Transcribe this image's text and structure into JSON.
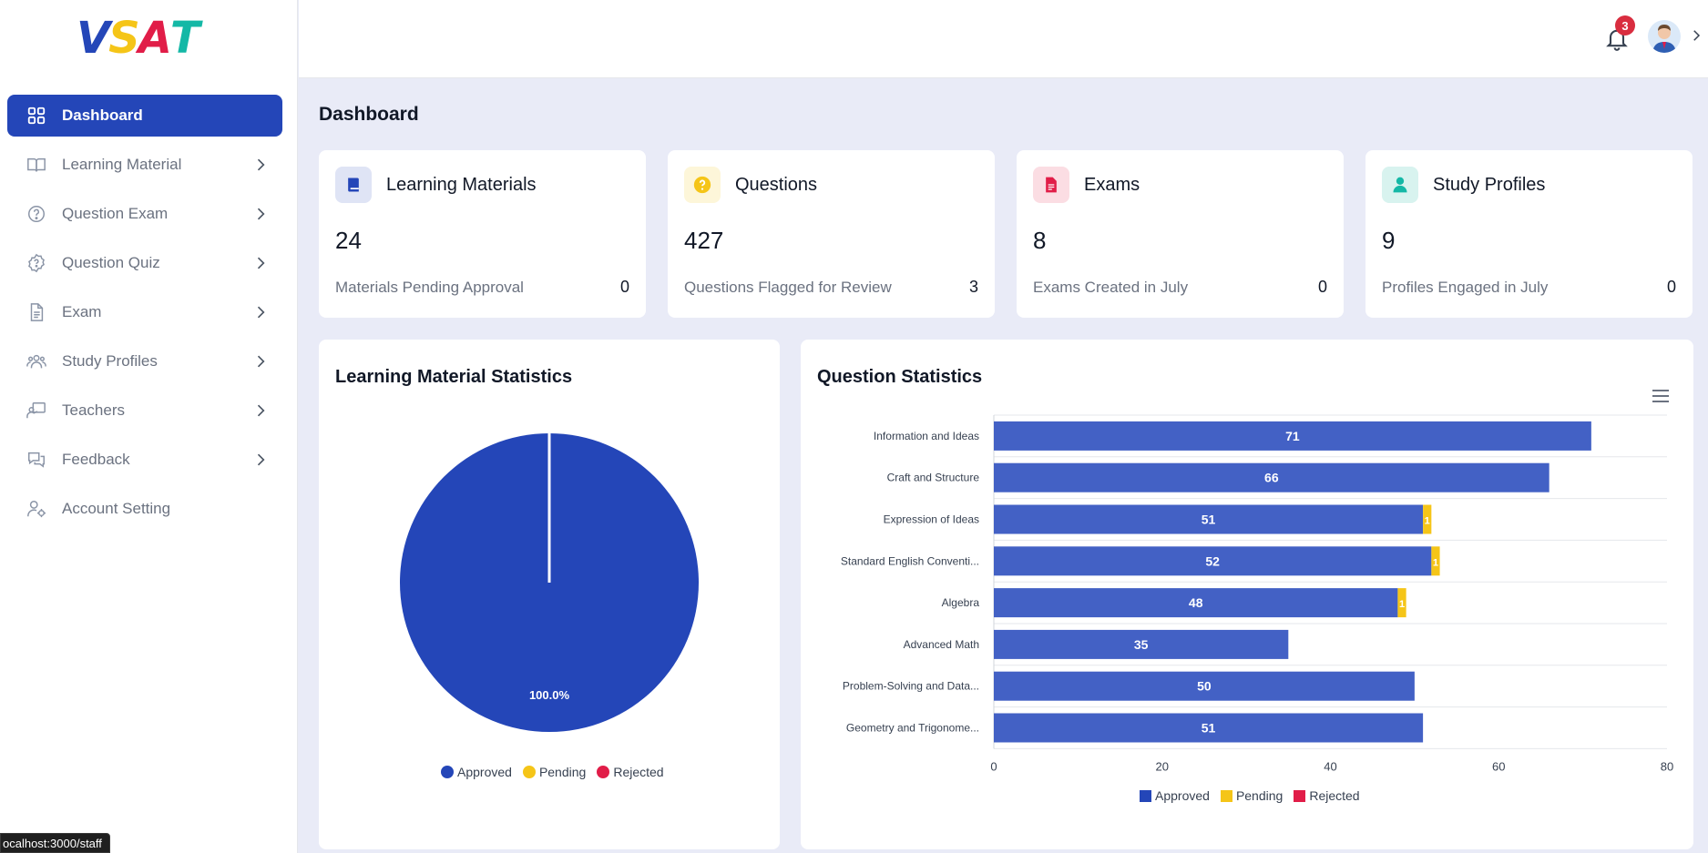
{
  "logo": {
    "letters": [
      "V",
      "S",
      "A",
      "T"
    ],
    "colors": [
      "#2446b8",
      "#f5c518",
      "#e11d48",
      "#14b8a6"
    ]
  },
  "sidebar": {
    "items": [
      {
        "label": "Dashboard",
        "icon": "grid-icon",
        "active": true,
        "has_chevron": false
      },
      {
        "label": "Learning Material",
        "icon": "book-icon",
        "has_chevron": true
      },
      {
        "label": "Question Exam",
        "icon": "question-circle-icon",
        "has_chevron": true
      },
      {
        "label": "Question Quiz",
        "icon": "quiz-badge-icon",
        "has_chevron": true
      },
      {
        "label": "Exam",
        "icon": "document-icon",
        "has_chevron": true
      },
      {
        "label": "Study Profiles",
        "icon": "users-icon",
        "has_chevron": true
      },
      {
        "label": "Teachers",
        "icon": "teacher-icon",
        "has_chevron": true
      },
      {
        "label": "Feedback",
        "icon": "chat-bubbles-icon",
        "has_chevron": true
      },
      {
        "label": "Account Setting",
        "icon": "user-gear-icon",
        "has_chevron": false
      }
    ]
  },
  "header": {
    "notification_count": "3",
    "avatar_icon": "user-avatar-icon"
  },
  "status_url": "ocalhost:3000/staff",
  "page_title": "Dashboard",
  "stats": [
    {
      "title": "Learning Materials",
      "value": "24",
      "sub_label": "Materials Pending Approval",
      "sub_value": "0",
      "icon": "book-solid-icon",
      "color": "#2446b8",
      "bg": "#dfe4f5"
    },
    {
      "title": "Questions",
      "value": "427",
      "sub_label": "Questions Flagged for Review",
      "sub_value": "3",
      "icon": "question-solid-icon",
      "color": "#f5c518",
      "bg": "#fdf6d9"
    },
    {
      "title": "Exams",
      "value": "8",
      "sub_label": "Exams Created in July",
      "sub_value": "0",
      "icon": "file-solid-icon",
      "color": "#e11d48",
      "bg": "#fbdde3"
    },
    {
      "title": "Study Profiles",
      "value": "9",
      "sub_label": "Profiles Engaged in July",
      "sub_value": "0",
      "icon": "person-solid-icon",
      "color": "#14b8a6",
      "bg": "#d8f3ef"
    }
  ],
  "colors": {
    "approved": "#2446b8",
    "approved_bar": "#4361c5",
    "pending": "#f5c518",
    "rejected": "#e11d48"
  },
  "chart_data": [
    {
      "type": "pie",
      "title": "Learning Material Statistics",
      "labels": [
        "Approved",
        "Pending",
        "Rejected"
      ],
      "values": [
        100,
        0,
        0
      ],
      "slice_label": "100.0%",
      "legend": "bottom"
    },
    {
      "type": "bar",
      "orientation": "horizontal",
      "stacked": true,
      "title": "Question Statistics",
      "categories": [
        "Information and Ideas",
        "Craft and Structure",
        "Expression of Ideas",
        "Standard English Conventi...",
        "Algebra",
        "Advanced Math",
        "Problem-Solving and Data...",
        "Geometry and Trigonome..."
      ],
      "series": [
        {
          "name": "Approved",
          "values": [
            71,
            66,
            51,
            52,
            48,
            35,
            50,
            51
          ]
        },
        {
          "name": "Pending",
          "values": [
            0,
            0,
            1,
            1,
            1,
            0,
            0,
            0
          ]
        },
        {
          "name": "Rejected",
          "values": [
            0,
            0,
            0,
            0,
            0,
            0,
            0,
            0
          ]
        }
      ],
      "xlim": [
        0,
        80
      ],
      "xticks": [
        "0",
        "20",
        "40",
        "60",
        "80"
      ],
      "legend": "bottom",
      "menu_icon": "hamburger-menu-icon"
    }
  ]
}
